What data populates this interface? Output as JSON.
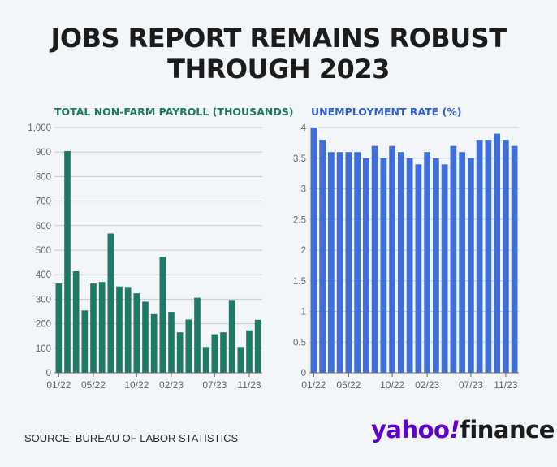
{
  "header": {
    "title_line1": "JOBS REPORT REMAINS ROBUST",
    "title_line2": "THROUGH 2023"
  },
  "footer": {
    "source": "SOURCE: BUREAU OF LABOR STATISTICS"
  },
  "logo": {
    "part1": "yahoo",
    "part2": "!",
    "part3": "finance"
  },
  "colors": {
    "payroll": "#1e7a67",
    "payroll_title": "#1e7a5e",
    "unemployment": "#3f6fd6",
    "unemployment_title": "#2f5fcf",
    "grid": "#c4cbd1",
    "tick": "#666666"
  },
  "chart_data": [
    {
      "type": "bar",
      "title": "TOTAL NON-FARM PAYROLL (THOUSANDS)",
      "xlabel": "",
      "ylabel": "",
      "ylim": [
        0,
        1000
      ],
      "yticks": [
        "0",
        "100",
        "200",
        "300",
        "400",
        "500",
        "600",
        "700",
        "800",
        "900",
        "1,000"
      ],
      "xticks": [
        {
          "label": "01/22",
          "index": 0
        },
        {
          "label": "05/22",
          "index": 4
        },
        {
          "label": "10/22",
          "index": 9
        },
        {
          "label": "02/23",
          "index": 13
        },
        {
          "label": "07/23",
          "index": 18
        },
        {
          "label": "11/23",
          "index": 22
        }
      ],
      "values": [
        364,
        904,
        414,
        254,
        364,
        370,
        568,
        352,
        350,
        324,
        290,
        239,
        472,
        248,
        165,
        217,
        306,
        105,
        157,
        165,
        297,
        105,
        173,
        216
      ]
    },
    {
      "type": "bar",
      "title": "UNEMPLOYMENT RATE (%)",
      "xlabel": "",
      "ylabel": "",
      "ylim": [
        0,
        4
      ],
      "yticks": [
        "0",
        "0.5",
        "1",
        "1.5",
        "2",
        "2.5",
        "3",
        "3.5",
        "4"
      ],
      "xticks": [
        {
          "label": "01/22",
          "index": 0
        },
        {
          "label": "05/22",
          "index": 4
        },
        {
          "label": "10/22",
          "index": 9
        },
        {
          "label": "02/23",
          "index": 13
        },
        {
          "label": "07/23",
          "index": 18
        },
        {
          "label": "11/23",
          "index": 22
        }
      ],
      "values": [
        4.0,
        3.8,
        3.6,
        3.6,
        3.6,
        3.6,
        3.5,
        3.7,
        3.5,
        3.7,
        3.6,
        3.5,
        3.4,
        3.6,
        3.5,
        3.4,
        3.7,
        3.6,
        3.5,
        3.8,
        3.8,
        3.9,
        3.8,
        3.7
      ]
    }
  ]
}
